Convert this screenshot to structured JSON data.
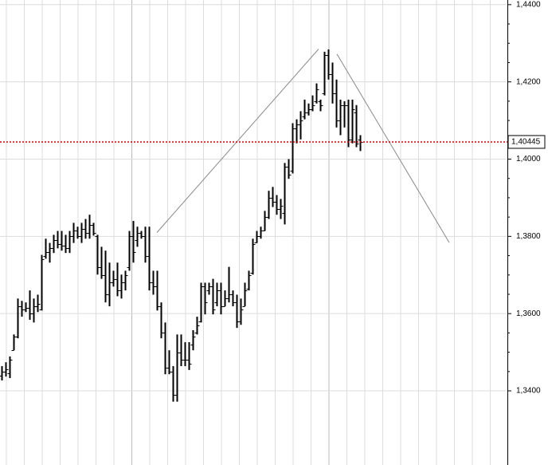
{
  "chart_data": {
    "type": "ohlc",
    "color": "#000000",
    "grid": true,
    "ylim": [
      1.3208,
      1.4412
    ],
    "xlim": [
      -0.4,
      127
    ],
    "yticks": [
      {
        "value": 1.44,
        "label": "1,4400"
      },
      {
        "value": 1.42,
        "label": "1,4200"
      },
      {
        "value": 1.4,
        "label": "1,4000"
      },
      {
        "value": 1.38,
        "label": "1,3800"
      },
      {
        "value": 1.36,
        "label": "1,3600"
      },
      {
        "value": 1.34,
        "label": "1,3400"
      }
    ],
    "price_line": {
      "value": 1.40445,
      "label": "1,40445",
      "color": "#cc0000"
    },
    "trendlines": [
      {
        "x": [
          39,
          79.6
        ],
        "y": [
          1.381,
          1.4285
        ],
        "color": "#888888"
      },
      {
        "x": [
          84.2,
          112.4
        ],
        "y": [
          1.4272,
          1.3784
        ],
        "color": "#888888"
      }
    ],
    "open": [
      1.344,
      1.345,
      1.3445,
      1.3505,
      1.354,
      1.362,
      1.361,
      1.3615,
      1.36,
      1.362,
      1.361,
      1.375,
      1.376,
      1.377,
      1.379,
      1.378,
      1.3775,
      1.377,
      1.38,
      1.3815,
      1.38,
      1.382,
      1.381,
      1.383,
      1.38,
      1.372,
      1.37,
      1.365,
      1.368,
      1.369,
      1.366,
      1.368,
      1.372,
      1.38,
      1.379,
      1.381,
      1.38,
      1.375,
      1.368,
      1.367,
      1.362,
      1.355,
      1.346,
      1.345,
      1.339,
      1.35,
      1.348,
      1.348,
      1.352,
      1.355,
      1.358,
      1.367,
      1.366,
      1.367,
      1.363,
      1.366,
      1.362,
      1.364,
      1.365,
      1.363,
      1.358,
      1.362,
      1.3665,
      1.3705,
      1.3785,
      1.38,
      1.3815,
      1.385,
      1.39,
      1.389,
      1.387,
      1.386,
      1.398,
      1.397,
      1.408,
      1.409,
      1.411,
      1.412,
      1.413,
      1.415,
      1.415,
      1.417,
      1.427,
      1.422,
      1.417,
      1.41,
      1.414,
      1.414,
      1.405,
      1.412,
      1.405
    ],
    "high": [
      1.3464,
      1.3474,
      1.3489,
      1.3546,
      1.3639,
      1.3633,
      1.3629,
      1.366,
      1.3639,
      1.3649,
      1.3752,
      1.3794,
      1.3783,
      1.3804,
      1.3814,
      1.3814,
      1.3804,
      1.3814,
      1.3835,
      1.3825,
      1.3835,
      1.3845,
      1.3856,
      1.3835,
      1.3804,
      1.3773,
      1.3763,
      1.3732,
      1.3711,
      1.3732,
      1.3701,
      1.3711,
      1.3814,
      1.384,
      1.3825,
      1.3814,
      1.3825,
      1.3825,
      1.3711,
      1.3711,
      1.3629,
      1.3577,
      1.3505,
      1.3464,
      1.3546,
      1.3546,
      1.3526,
      1.3526,
      1.3557,
      1.3592,
      1.368,
      1.368,
      1.368,
      1.369,
      1.368,
      1.368,
      1.366,
      1.3721,
      1.366,
      1.3649,
      1.3639,
      1.368,
      1.3711,
      1.3794,
      1.3814,
      1.3825,
      1.3866,
      1.3918,
      1.3928,
      1.3907,
      1.3897,
      1.399,
      1.4,
      1.4093,
      1.4103,
      1.4124,
      1.4154,
      1.4144,
      1.4165,
      1.4196,
      1.4154,
      1.4278,
      1.4284,
      1.425,
      1.4206,
      1.4154,
      1.415,
      1.4154,
      1.4154,
      1.414,
      1.4062
    ],
    "low": [
      1.3427,
      1.3437,
      1.3433,
      1.3505,
      1.3536,
      1.3592,
      1.3604,
      1.3584,
      1.3577,
      1.3604,
      1.3608,
      1.3742,
      1.3732,
      1.3757,
      1.3769,
      1.3763,
      1.3757,
      1.3757,
      1.3783,
      1.3794,
      1.3783,
      1.3794,
      1.3794,
      1.3802,
      1.3701,
      1.369,
      1.3629,
      1.3619,
      1.367,
      1.3645,
      1.3639,
      1.366,
      1.3711,
      1.3732,
      1.3773,
      1.3794,
      1.3732,
      1.366,
      1.3649,
      1.3608,
      1.3536,
      1.3443,
      1.3443,
      1.3372,
      1.3372,
      1.3464,
      1.3464,
      1.3454,
      1.3505,
      1.3546,
      1.3577,
      1.3598,
      1.3649,
      1.3598,
      1.3619,
      1.3598,
      1.3619,
      1.3629,
      1.3619,
      1.3563,
      1.3571,
      1.3619,
      1.366,
      1.3701,
      1.3783,
      1.3794,
      1.3814,
      1.3845,
      1.3876,
      1.3856,
      1.3845,
      1.3831,
      1.3949,
      1.3963,
      1.4041,
      1.4051,
      1.4103,
      1.4113,
      1.4124,
      1.4144,
      1.4124,
      1.4165,
      1.4206,
      1.4144,
      1.4082,
      1.4062,
      1.4082,
      1.4031,
      1.4041,
      1.4031,
      1.4021
    ],
    "close": [
      1.345,
      1.3455,
      1.348,
      1.354,
      1.362,
      1.361,
      1.3615,
      1.36,
      1.362,
      1.3625,
      1.374,
      1.376,
      1.377,
      1.379,
      1.378,
      1.3775,
      1.377,
      1.38,
      1.3815,
      1.38,
      1.382,
      1.381,
      1.383,
      1.381,
      1.372,
      1.37,
      1.365,
      1.368,
      1.369,
      1.366,
      1.368,
      1.37,
      1.38,
      1.376,
      1.381,
      1.38,
      1.375,
      1.368,
      1.367,
      1.362,
      1.355,
      1.346,
      1.345,
      1.339,
      1.35,
      1.348,
      1.348,
      1.347,
      1.354,
      1.357,
      1.367,
      1.363,
      1.367,
      1.361,
      1.366,
      1.362,
      1.364,
      1.365,
      1.363,
      1.358,
      1.361,
      1.366,
      1.37,
      1.378,
      1.38,
      1.3815,
      1.385,
      1.39,
      1.389,
      1.387,
      1.388,
      1.398,
      1.396,
      1.408,
      1.409,
      1.41,
      1.412,
      1.413,
      1.414,
      1.418,
      1.414,
      1.427,
      1.422,
      1.417,
      1.41,
      1.414,
      1.414,
      1.405,
      1.413,
      1.404,
      1.40445
    ]
  }
}
